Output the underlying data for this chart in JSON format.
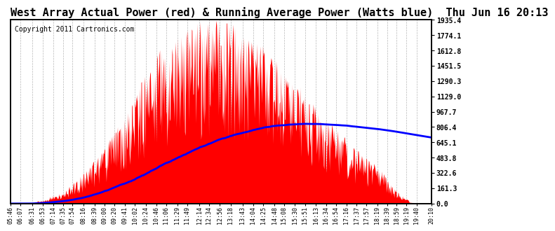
{
  "title": "West Array Actual Power (red) & Running Average Power (Watts blue)  Thu Jun 16 20:13",
  "copyright": "Copyright 2011 Cartronics.com",
  "ylabel_right": [
    "1935.4",
    "1774.1",
    "1612.8",
    "1451.5",
    "1290.3",
    "1129.0",
    "967.7",
    "806.4",
    "645.1",
    "483.8",
    "322.6",
    "161.3",
    "0.0"
  ],
  "ymax": 1935.4,
  "ymin": 0.0,
  "background_color": "#ffffff",
  "plot_bg_color": "#ffffff",
  "grid_color": "#888888",
  "bar_color": "#ff0000",
  "avg_color": "#0000ff",
  "title_fontsize": 11,
  "copyright_fontsize": 7,
  "x_tick_labels": [
    "05:46",
    "06:07",
    "06:31",
    "06:53",
    "07:14",
    "07:35",
    "07:54",
    "08:16",
    "08:39",
    "09:00",
    "09:20",
    "09:41",
    "10:02",
    "10:24",
    "10:46",
    "11:06",
    "11:29",
    "11:49",
    "12:14",
    "12:34",
    "12:56",
    "13:18",
    "13:43",
    "14:04",
    "14:25",
    "14:48",
    "15:08",
    "15:30",
    "15:51",
    "16:13",
    "16:34",
    "16:54",
    "17:16",
    "17:37",
    "17:57",
    "18:19",
    "18:39",
    "18:59",
    "19:19",
    "19:40",
    "20:10"
  ]
}
